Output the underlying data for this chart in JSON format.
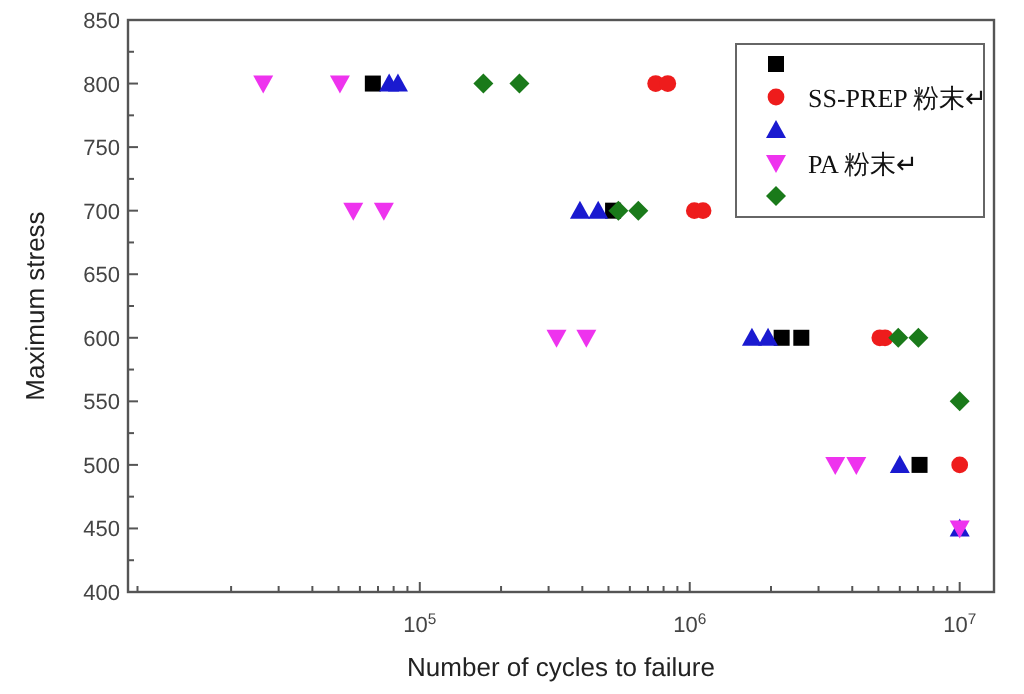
{
  "chart_data": {
    "type": "scatter",
    "xlabel": "Number of cycles to failure",
    "ylabel": "Maximum stress",
    "log": "x",
    "grid": false,
    "legend": "top right",
    "xlim": [
      8300,
      13400000
    ],
    "xticks": [
      {
        "value": 100000,
        "label": "10$^{5}$"
      },
      {
        "value": 1000000,
        "label": "10$^{6}$"
      },
      {
        "value": 10000000,
        "label": "10$^{7}$"
      }
    ],
    "ylim": [
      400,
      850
    ],
    "yticks": [
      400,
      450,
      500,
      550,
      600,
      650,
      700,
      750,
      800,
      850
    ],
    "series": [
      {
        "marker": "square",
        "color": "#000000",
        "x": [
          67000,
          520000,
          2190000,
          2590000,
          7100000
        ],
        "values": [
          800,
          700,
          600,
          600,
          500
        ]
      },
      {
        "marker": "circle",
        "color": "#ee1c1c",
        "name": "SS-PREP 粉末↵",
        "x": [
          748000,
          829000,
          1040000,
          1120000,
          5060000,
          5290000,
          10000000
        ],
        "values": [
          800,
          800,
          700,
          700,
          600,
          600,
          500
        ]
      },
      {
        "marker": "triangle",
        "color": "#1a1ad0",
        "x": [
          77000,
          83000,
          392000,
          458000,
          1700000,
          1950000,
          6000000,
          10000000
        ],
        "values": [
          800,
          800,
          700,
          700,
          600,
          600,
          500,
          450
        ]
      },
      {
        "marker": "triangle-down",
        "color": "#ee33ee",
        "name": "PA 粉末↵",
        "x": [
          26300,
          50600,
          56700,
          73600,
          321000,
          414000,
          3460000,
          4140000,
          10000000
        ],
        "values": [
          800,
          800,
          700,
          700,
          600,
          600,
          500,
          500,
          450
        ]
      },
      {
        "marker": "diamond",
        "color": "#1a7a1a",
        "x": [
          172000,
          234000,
          544000,
          645000,
          5920000,
          7030000,
          10000000
        ],
        "values": [
          800,
          800,
          700,
          700,
          600,
          600,
          550
        ]
      }
    ]
  }
}
